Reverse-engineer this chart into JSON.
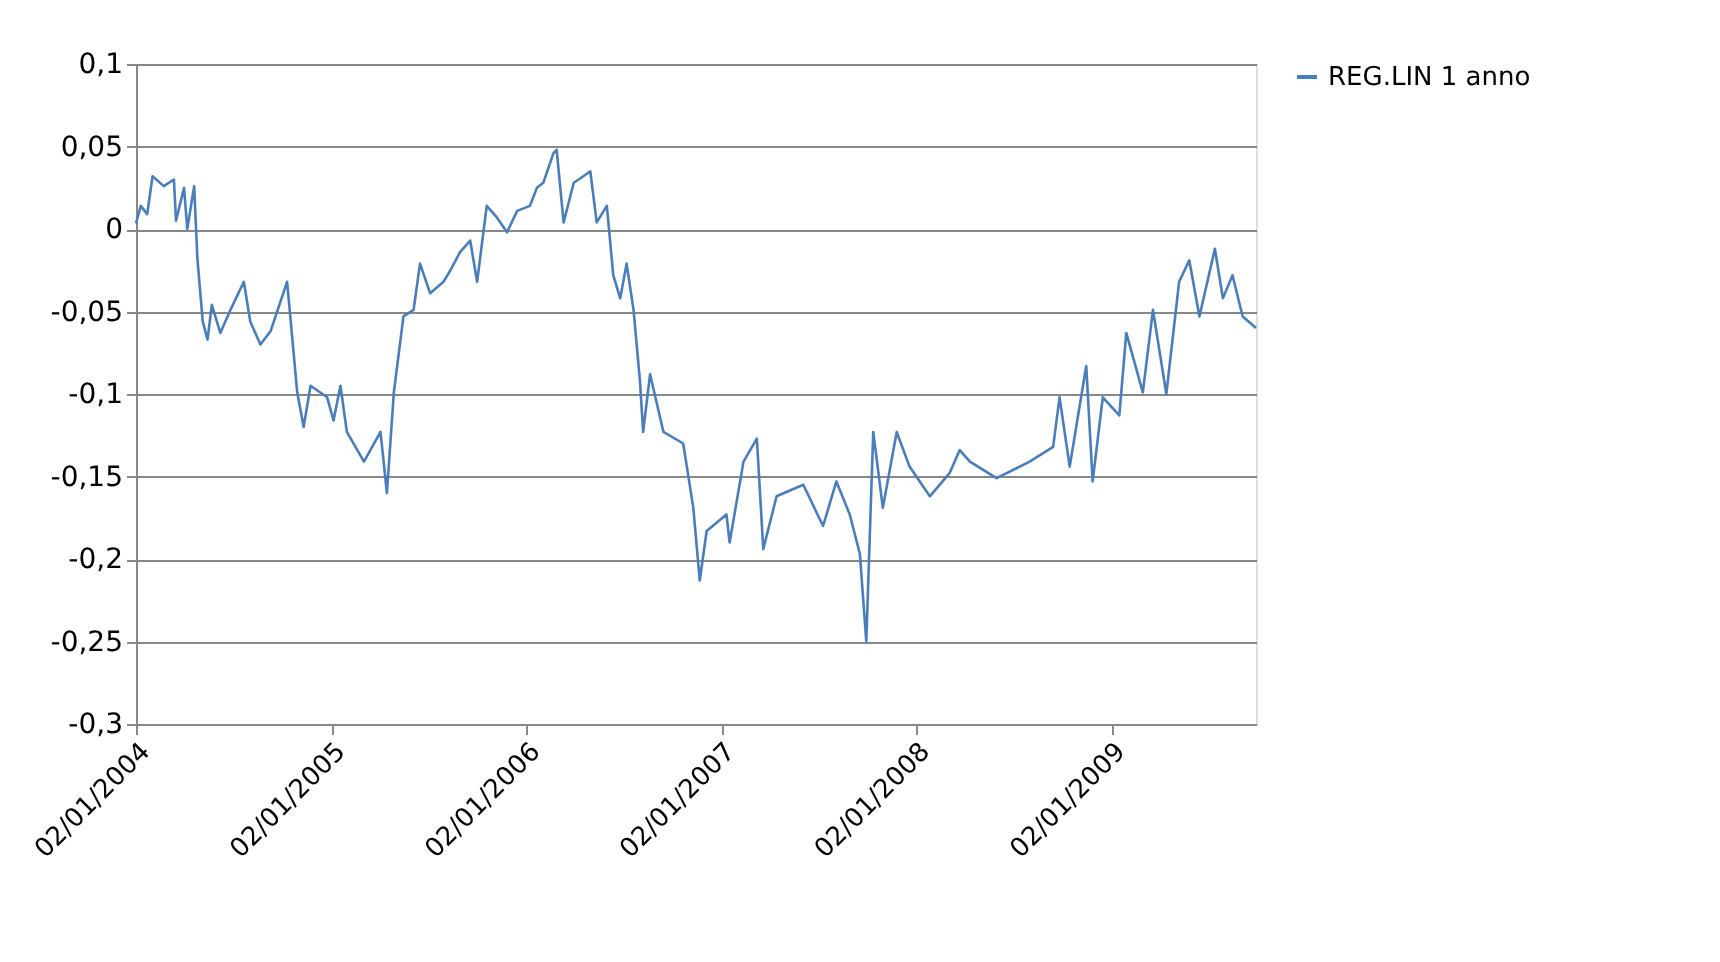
{
  "chart_data": {
    "type": "line",
    "ylim": [
      -0.3,
      0.1
    ],
    "yticks": [
      {
        "value": -0.3,
        "label": "-0,3"
      },
      {
        "value": -0.25,
        "label": "-0,25"
      },
      {
        "value": -0.2,
        "label": "-0,2"
      },
      {
        "value": -0.15,
        "label": "-0,15"
      },
      {
        "value": -0.1,
        "label": "-0,1"
      },
      {
        "value": -0.05,
        "label": "-0,05"
      },
      {
        "value": 0,
        "label": "0"
      },
      {
        "value": 0.05,
        "label": "0,05"
      },
      {
        "value": 0.1,
        "label": "0,1"
      }
    ],
    "xlim": [
      "2004-01-02",
      "2009-09-30"
    ],
    "xticks": [
      {
        "value": "2004-01-02",
        "label": "02/01/2004"
      },
      {
        "value": "2005-01-02",
        "label": "02/01/2005"
      },
      {
        "value": "2006-01-02",
        "label": "02/01/2006"
      },
      {
        "value": "2007-01-02",
        "label": "02/01/2007"
      },
      {
        "value": "2008-01-02",
        "label": "02/01/2008"
      },
      {
        "value": "2009-01-02",
        "label": "02/01/2009"
      }
    ],
    "grid": "y",
    "legend": "right",
    "series": [
      {
        "name": "REG.LIN 1 anno",
        "color": "#4a7ebb",
        "x": [
          "2004-01-02",
          "2004-01-11",
          "2004-01-23",
          "2004-02-02",
          "2004-02-23",
          "2004-03-13",
          "2004-03-17",
          "2004-04-01",
          "2004-04-07",
          "2004-04-20",
          "2004-04-26",
          "2004-05-06",
          "2004-05-15",
          "2004-05-23",
          "2004-06-08",
          "2004-06-27",
          "2004-07-22",
          "2004-08-03",
          "2004-08-22",
          "2004-09-10",
          "2004-10-11",
          "2004-10-17",
          "2004-10-30",
          "2004-11-11",
          "2004-11-24",
          "2004-12-25",
          "2005-01-06",
          "2005-01-19",
          "2005-01-31",
          "2005-03-04",
          "2005-04-04",
          "2005-04-16",
          "2005-04-29",
          "2005-05-17",
          "2005-06-05",
          "2005-06-17",
          "2005-07-06",
          "2005-07-31",
          "2005-08-13",
          "2005-08-31",
          "2005-09-19",
          "2005-10-02",
          "2005-10-20",
          "2005-11-08",
          "2005-11-27",
          "2005-12-16",
          "2006-01-09",
          "2006-01-22",
          "2006-02-03",
          "2006-02-22",
          "2006-02-28",
          "2006-03-13",
          "2006-04-01",
          "2006-04-19",
          "2006-05-02",
          "2006-05-14",
          "2006-06-02",
          "2006-06-14",
          "2006-06-27",
          "2006-07-09",
          "2006-07-22",
          "2006-08-03",
          "2006-08-09",
          "2006-08-22",
          "2006-09-16",
          "2006-10-23",
          "2006-11-11",
          "2006-11-23",
          "2006-12-06",
          "2007-01-12",
          "2007-01-18",
          "2007-02-13",
          "2007-03-10",
          "2007-03-22",
          "2007-04-16",
          "2007-06-05",
          "2007-07-12",
          "2007-08-06",
          "2007-08-31",
          "2007-09-19",
          "2007-10-01",
          "2007-10-14",
          "2007-11-01",
          "2007-11-27",
          "2007-12-21",
          "2008-01-28",
          "2008-03-05",
          "2008-03-24",
          "2008-04-12",
          "2008-06-01",
          "2008-08-02",
          "2008-09-15",
          "2008-09-27",
          "2008-10-16",
          "2008-11-16",
          "2008-11-28",
          "2008-12-17",
          "2009-01-17",
          "2009-01-30",
          "2009-03-02",
          "2009-03-21",
          "2009-04-15",
          "2009-05-09",
          "2009-05-28",
          "2009-06-16",
          "2009-07-15",
          "2009-07-30",
          "2009-08-17",
          "2009-09-05",
          "2009-09-30"
        ],
        "values": [
          0.0035,
          0.014,
          0.009,
          0.032,
          0.026,
          0.03,
          0.005,
          0.025,
          0.0,
          0.026,
          -0.018,
          -0.056,
          -0.067,
          -0.046,
          -0.063,
          -0.049,
          -0.032,
          -0.056,
          -0.07,
          -0.062,
          -0.032,
          -0.053,
          -0.099,
          -0.12,
          -0.095,
          -0.102,
          -0.116,
          -0.095,
          -0.123,
          -0.141,
          -0.123,
          -0.16,
          -0.099,
          -0.053,
          -0.049,
          -0.021,
          -0.039,
          -0.032,
          -0.025,
          -0.014,
          -0.007,
          -0.032,
          0.014,
          0.007,
          -0.002,
          0.011,
          0.014,
          0.025,
          0.028,
          0.046,
          0.048,
          0.004,
          0.028,
          0.032,
          0.035,
          0.004,
          0.014,
          -0.028,
          -0.042,
          -0.021,
          -0.049,
          -0.092,
          -0.123,
          -0.088,
          -0.123,
          -0.13,
          -0.169,
          -0.213,
          -0.183,
          -0.173,
          -0.19,
          -0.141,
          -0.127,
          -0.194,
          -0.162,
          -0.155,
          -0.18,
          -0.153,
          -0.173,
          -0.197,
          -0.25,
          -0.123,
          -0.169,
          -0.123,
          -0.144,
          -0.162,
          -0.148,
          -0.134,
          -0.141,
          -0.151,
          -0.141,
          -0.132,
          -0.102,
          -0.144,
          -0.083,
          -0.153,
          -0.102,
          -0.113,
          -0.063,
          -0.099,
          -0.049,
          -0.1,
          -0.032,
          -0.019,
          -0.053,
          -0.012,
          -0.042,
          -0.028,
          -0.053,
          -0.06
        ]
      }
    ]
  }
}
